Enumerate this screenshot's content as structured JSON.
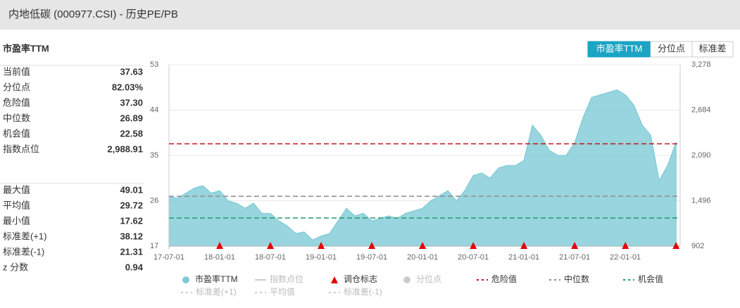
{
  "header": {
    "title": "内地低碳 (000977.CSI) - 历史PE/PB"
  },
  "tabs": {
    "items": [
      "市盈率TTM",
      "分位点",
      "标准差"
    ],
    "active": 0
  },
  "stats": {
    "title": "市盈率TTM",
    "groups": [
      [
        [
          "当前值",
          "37.63"
        ],
        [
          "分位点",
          "82.03%"
        ],
        [
          "危险值",
          "37.30"
        ],
        [
          "中位数",
          "26.89"
        ],
        [
          "机会值",
          "22.58"
        ],
        [
          "指数点位",
          "2,988.91"
        ]
      ],
      [
        [
          "最大值",
          "49.01"
        ],
        [
          "平均值",
          "29.72"
        ],
        [
          "最小值",
          "17.62"
        ],
        [
          "标准差(+1)",
          "38.12"
        ],
        [
          "标准差(-1)",
          "21.31"
        ],
        [
          "z 分数",
          "0.94"
        ]
      ]
    ]
  },
  "chart_data": {
    "type": "area",
    "x": [
      "17-07-01",
      "17-08-01",
      "17-09-01",
      "17-10-01",
      "17-11-01",
      "17-12-01",
      "18-01-01",
      "18-02-01",
      "18-03-01",
      "18-04-01",
      "18-05-01",
      "18-06-01",
      "18-07-01",
      "18-08-01",
      "18-09-01",
      "18-10-01",
      "18-11-01",
      "18-12-01",
      "19-01-01",
      "19-02-01",
      "19-03-01",
      "19-04-01",
      "19-05-01",
      "19-06-01",
      "19-07-01",
      "19-08-01",
      "19-09-01",
      "19-10-01",
      "19-11-01",
      "19-12-01",
      "20-01-01",
      "20-02-01",
      "20-03-01",
      "20-04-01",
      "20-05-01",
      "20-06-01",
      "20-07-01",
      "20-08-01",
      "20-09-01",
      "20-10-01",
      "20-11-01",
      "20-12-01",
      "21-01-01",
      "21-02-01",
      "21-03-01",
      "21-04-01",
      "21-05-01",
      "21-06-01",
      "21-07-01",
      "21-08-01",
      "21-09-01",
      "21-10-01",
      "21-11-01",
      "21-12-01",
      "22-01-01",
      "22-02-01",
      "22-03-01",
      "22-04-01",
      "22-05-01",
      "22-06-01",
      "22-07-01"
    ],
    "series": [
      {
        "name": "市盈率TTM",
        "color": "#7ecbd6",
        "values": [
          26.8,
          26.5,
          27.5,
          28.5,
          29,
          27.5,
          28,
          26,
          25.5,
          24.5,
          25.5,
          23.5,
          23.5,
          22,
          21,
          19.5,
          19.8,
          18.2,
          19,
          19.5,
          22,
          24.5,
          23,
          23.5,
          22,
          22.5,
          23,
          22.5,
          23.5,
          24,
          24.5,
          26,
          27,
          28,
          26,
          28,
          31,
          31.5,
          30.5,
          32.5,
          33,
          33,
          34,
          41,
          39,
          36,
          35,
          35,
          37.5,
          42.5,
          46.5,
          47,
          47.5,
          48,
          47,
          45,
          41,
          39,
          30,
          33,
          37.63
        ]
      }
    ],
    "hidden_series": [
      {
        "name": "指数点位",
        "marker": "line"
      },
      {
        "name": "分位点",
        "marker": "circle"
      },
      {
        "name": "标准差(+1)",
        "marker": "dash"
      },
      {
        "name": "平均值",
        "marker": "dash"
      },
      {
        "name": "标准差(-1)",
        "marker": "dash"
      }
    ],
    "markers": {
      "name": "调仓标志",
      "color": "#e60000",
      "x": [
        "18-01-01",
        "18-07-01",
        "19-01-01",
        "19-07-01",
        "20-01-01",
        "20-07-01",
        "21-01-01",
        "21-07-01",
        "22-01-01",
        "22-07-01"
      ]
    },
    "reference_lines": [
      {
        "name": "危险值",
        "value": 37.3,
        "color": "#c0141b"
      },
      {
        "name": "中位数",
        "value": 26.89,
        "color": "#8c8c8c"
      },
      {
        "name": "机会值",
        "value": 22.58,
        "color": "#1f9a6e"
      }
    ],
    "xlim": [
      "17-07-01",
      "22-07-16"
    ],
    "xticks": [
      "17-07-01",
      "18-01-01",
      "18-07-01",
      "19-01-01",
      "19-07-01",
      "20-01-01",
      "20-07-01",
      "21-01-01",
      "21-07-01",
      "22-01-01"
    ],
    "ylim": [
      17,
      53
    ],
    "yticks": [
      17,
      26,
      35,
      44,
      53
    ],
    "y2lim": [
      902,
      3278
    ],
    "y2ticks": [
      902,
      {
        "value": 1496,
        "label": "1,496"
      },
      {
        "value": 2090,
        "label": "2,090"
      },
      {
        "value": 2684,
        "label": "2,684"
      },
      {
        "value": 3278,
        "label": "3,278"
      }
    ],
    "grid": true
  }
}
